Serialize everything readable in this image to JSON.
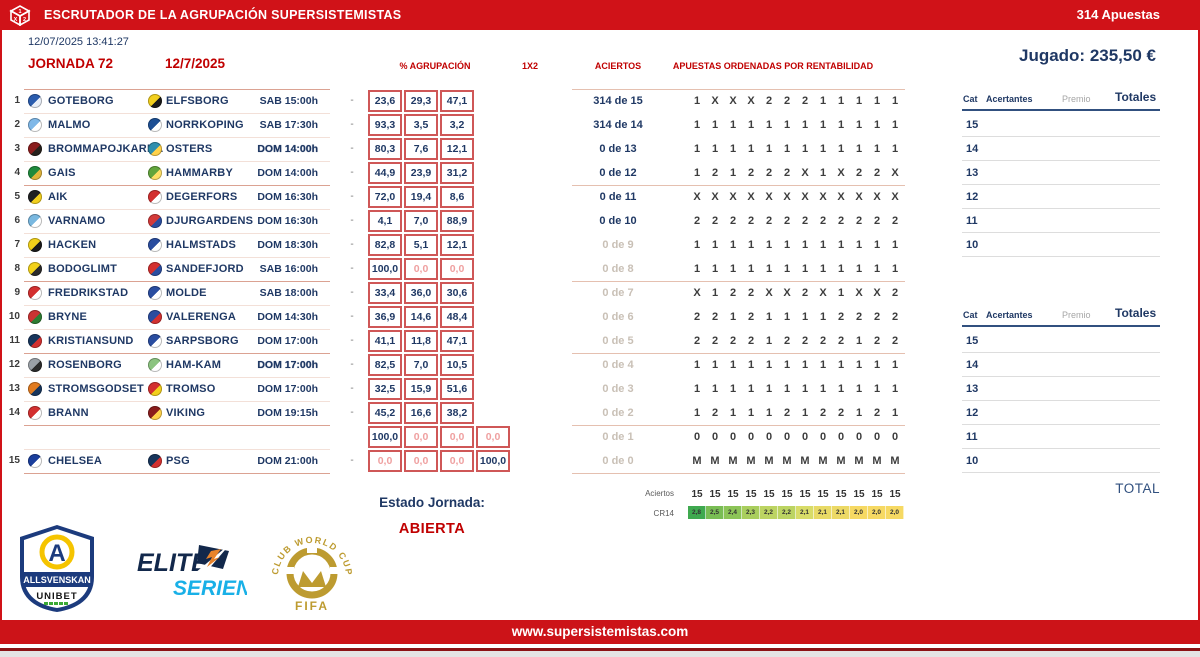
{
  "header": {
    "title": "ESCRUTADOR DE LA AGRUPACIÓN SUPERSISTEMISTAS",
    "bets_count": "314 Apuestas",
    "icon": "dice-1x2-icon"
  },
  "meta": {
    "timestamp": "12/07/2025 13:41:27",
    "jornada": "JORNADA 72",
    "date": "12/7/2025",
    "played": "Jugado: 235,50 €"
  },
  "columns": {
    "agrupacion": "% AGRUPACIÓN",
    "signs": "1X2",
    "aciertos": "ACIERTOS",
    "apuestas": "APUESTAS ORDENADAS POR RENTABILIDAD"
  },
  "matches": [
    {
      "num": "1",
      "home": "GOTEBORG",
      "away": "ELFSBORG",
      "time": "SAB 15:00h",
      "time_bold": false,
      "home_badge": [
        "#2a5cae",
        "#e8eef8"
      ],
      "away_badge": [
        "#f2cf1d",
        "#1a1a1a"
      ],
      "pct": [
        "23,6",
        "29,3",
        "47,1"
      ]
    },
    {
      "num": "2",
      "home": "MALMO",
      "away": "NORRKOPING",
      "time": "SAB 17:30h",
      "time_bold": false,
      "home_badge": [
        "#7fb8e8",
        "#ffffff"
      ],
      "away_badge": [
        "#1d4f94",
        "#ffffff"
      ],
      "pct": [
        "93,3",
        "3,5",
        "3,2"
      ]
    },
    {
      "num": "3",
      "home": "BROMMAPOJKARNA",
      "away": "OSTERS",
      "time": "DOM 14:00h",
      "time_bold": true,
      "home_badge": [
        "#8a1c1c",
        "#26211c"
      ],
      "away_badge": [
        "#2f8fae",
        "#ffd24a"
      ],
      "pct": [
        "80,3",
        "7,6",
        "12,1"
      ]
    },
    {
      "num": "4",
      "home": "GAIS",
      "away": "HAMMARBY",
      "time": "DOM 14:00h",
      "time_bold": false,
      "home_badge": [
        "#1f8a3c",
        "#e0b43a"
      ],
      "away_badge": [
        "#63a53c",
        "#ffe066"
      ],
      "pct": [
        "44,9",
        "23,9",
        "31,2"
      ]
    },
    {
      "num": "5",
      "home": "AIK",
      "away": "DEGERFORS",
      "time": "DOM 16:30h",
      "time_bold": false,
      "home_badge": [
        "#1f2022",
        "#f2cf1d"
      ],
      "away_badge": [
        "#d33030",
        "#ffffff"
      ],
      "pct": [
        "72,0",
        "19,4",
        "8,6"
      ]
    },
    {
      "num": "6",
      "home": "VARNAMO",
      "away": "DJURGARDENS",
      "time": "DOM 16:30h",
      "time_bold": false,
      "home_badge": [
        "#79b8e0",
        "#ffffff"
      ],
      "away_badge": [
        "#d33a3a",
        "#2a4da0"
      ],
      "pct": [
        "4,1",
        "7,0",
        "88,9"
      ]
    },
    {
      "num": "7",
      "home": "HACKEN",
      "away": "HALMSTADS",
      "time": "DOM 18:30h",
      "time_bold": false,
      "home_badge": [
        "#f2d11a",
        "#1a1a1a"
      ],
      "away_badge": [
        "#2a4da0",
        "#ffffff"
      ],
      "pct": [
        "82,8",
        "5,1",
        "12,1"
      ]
    },
    {
      "num": "8",
      "home": "BODOGLIMT",
      "away": "SANDEFJORD",
      "time": "SAB 16:00h",
      "time_bold": false,
      "home_badge": [
        "#f2d11a",
        "#2b2b2b"
      ],
      "away_badge": [
        "#d33030",
        "#2a4da0"
      ],
      "pct": [
        "100,0",
        "0,0",
        "0,0"
      ]
    },
    {
      "num": "9",
      "home": "FREDRIKSTAD",
      "away": "MOLDE",
      "time": "SAB 18:00h",
      "time_bold": false,
      "home_badge": [
        "#d33030",
        "#ffffff"
      ],
      "away_badge": [
        "#2a4da0",
        "#ffffff"
      ],
      "pct": [
        "33,4",
        "36,0",
        "30,6"
      ]
    },
    {
      "num": "10",
      "home": "BRYNE",
      "away": "VALERENGA",
      "time": "DOM 14:30h",
      "time_bold": false,
      "home_badge": [
        "#cc3333",
        "#2e7d32"
      ],
      "away_badge": [
        "#2a4da0",
        "#d33030"
      ],
      "pct": [
        "36,9",
        "14,6",
        "48,4"
      ]
    },
    {
      "num": "11",
      "home": "KRISTIANSUND",
      "away": "SARPSBORG",
      "time": "DOM 17:00h",
      "time_bold": false,
      "home_badge": [
        "#17355c",
        "#d33030"
      ],
      "away_badge": [
        "#2a4da0",
        "#ffffff"
      ],
      "pct": [
        "41,1",
        "11,8",
        "47,1"
      ]
    },
    {
      "num": "12",
      "home": "ROSENBORG",
      "away": "HAM-KAM",
      "time": "DOM 17:00h",
      "time_bold": true,
      "home_badge": [
        "#9aa0a6",
        "#2b2b2b"
      ],
      "away_badge": [
        "#8cc480",
        "#ffffff"
      ],
      "pct": [
        "82,5",
        "7,0",
        "10,5"
      ]
    },
    {
      "num": "13",
      "home": "STROMSGODSET",
      "away": "TROMSO",
      "time": "DOM 17:00h",
      "time_bold": false,
      "home_badge": [
        "#e07b20",
        "#17355c"
      ],
      "away_badge": [
        "#d33030",
        "#f2cf1d"
      ],
      "pct": [
        "32,5",
        "15,9",
        "51,6"
      ]
    },
    {
      "num": "14",
      "home": "BRANN",
      "away": "VIKING",
      "time": "DOM 19:15h",
      "time_bold": false,
      "home_badge": [
        "#d33030",
        "#ffffff"
      ],
      "away_badge": [
        "#8a1c1c",
        "#ffd24a"
      ],
      "pct": [
        "45,2",
        "16,6",
        "38,2"
      ]
    },
    {
      "num": "15",
      "home": "CHELSEA",
      "away": "PSG",
      "time": "DOM 21:00h",
      "time_bold": false,
      "home_badge": [
        "#1a3e9c",
        "#ffffff"
      ],
      "away_badge": [
        "#17355c",
        "#d33030"
      ],
      "pct": null
    }
  ],
  "match15_pct_rows": [
    [
      "100,0",
      "0,0",
      "0,0",
      "0,0"
    ],
    [
      "0,0",
      "0,0",
      "0,0",
      "100,0"
    ]
  ],
  "aciertos_rows": [
    "314 de 15",
    "314 de 14",
    "0 de 13",
    "0 de 12",
    "0 de 11",
    "0 de 10",
    "0 de 9",
    "0 de 8",
    "0 de 7",
    "0 de 6",
    "0 de 5",
    "0 de 4",
    "0 de 3",
    "0 de 2",
    "0 de 1",
    "0 de 0"
  ],
  "aciertos_muted_from": 6,
  "bets_grid": [
    [
      "1",
      "X",
      "X",
      "X",
      "2",
      "2",
      "2",
      "1",
      "1",
      "1",
      "1",
      "1"
    ],
    [
      "1",
      "1",
      "1",
      "1",
      "1",
      "1",
      "1",
      "1",
      "1",
      "1",
      "1",
      "1"
    ],
    [
      "1",
      "1",
      "1",
      "1",
      "1",
      "1",
      "1",
      "1",
      "1",
      "1",
      "1",
      "1"
    ],
    [
      "1",
      "2",
      "1",
      "2",
      "2",
      "2",
      "X",
      "1",
      "X",
      "2",
      "2",
      "X"
    ],
    [
      "X",
      "X",
      "X",
      "X",
      "X",
      "X",
      "X",
      "X",
      "X",
      "X",
      "X",
      "X"
    ],
    [
      "2",
      "2",
      "2",
      "2",
      "2",
      "2",
      "2",
      "2",
      "2",
      "2",
      "2",
      "2"
    ],
    [
      "1",
      "1",
      "1",
      "1",
      "1",
      "1",
      "1",
      "1",
      "1",
      "1",
      "1",
      "1"
    ],
    [
      "1",
      "1",
      "1",
      "1",
      "1",
      "1",
      "1",
      "1",
      "1",
      "1",
      "1",
      "1"
    ],
    [
      "X",
      "1",
      "2",
      "2",
      "X",
      "X",
      "2",
      "X",
      "1",
      "X",
      "X",
      "2"
    ],
    [
      "2",
      "2",
      "1",
      "2",
      "1",
      "1",
      "1",
      "1",
      "2",
      "2",
      "2",
      "2"
    ],
    [
      "2",
      "2",
      "2",
      "2",
      "1",
      "2",
      "2",
      "2",
      "2",
      "1",
      "2",
      "2"
    ],
    [
      "1",
      "1",
      "1",
      "1",
      "1",
      "1",
      "1",
      "1",
      "1",
      "1",
      "1",
      "1"
    ],
    [
      "1",
      "1",
      "1",
      "1",
      "1",
      "1",
      "1",
      "1",
      "1",
      "1",
      "1",
      "1"
    ],
    [
      "1",
      "2",
      "1",
      "1",
      "1",
      "2",
      "1",
      "2",
      "2",
      "1",
      "2",
      "1"
    ],
    [
      "0",
      "0",
      "0",
      "0",
      "0",
      "0",
      "0",
      "0",
      "0",
      "0",
      "0",
      "0"
    ],
    [
      "M",
      "M",
      "M",
      "M",
      "M",
      "M",
      "M",
      "M",
      "M",
      "M",
      "M",
      "M"
    ]
  ],
  "right_table": {
    "headers": {
      "cat": "Cat",
      "acertantes": "Acertantes",
      "premio": "Premio",
      "totales": "Totales"
    },
    "cats": [
      "15",
      "14",
      "13",
      "12",
      "11",
      "10"
    ],
    "total_label": "TOTAL"
  },
  "estado": {
    "label": "Estado Jornada:",
    "value": "ABIERTA"
  },
  "summary": {
    "aciertos_label": "Aciertos",
    "cr_label": "CR14",
    "aciertos_values": [
      "15",
      "15",
      "15",
      "15",
      "15",
      "15",
      "15",
      "15",
      "15",
      "15",
      "15",
      "15"
    ],
    "cr_values": [
      "2,8",
      "2,5",
      "2,4",
      "2,3",
      "2,2",
      "2,2",
      "2,1",
      "2,1",
      "2,1",
      "2,0",
      "2,0",
      "2,0"
    ],
    "cr_colors": [
      "#3fa94f",
      "#79bd54",
      "#8cc457",
      "#a9ce5d",
      "#bcd462",
      "#bcd462",
      "#d8dc68",
      "#e8da66",
      "#ecd965",
      "#f6d963",
      "#f6d963",
      "#f6d963"
    ]
  },
  "logos": {
    "allsvenskan": {
      "line1": "ALLSVENSKAN",
      "line2": "UNIBET",
      "letter": "A"
    },
    "eliteserien": {
      "line1": "ELITE",
      "line2": "SERIEN"
    },
    "cwc": {
      "arc": "CLUB WORLD CUP 25",
      "fifa": "FIFA"
    }
  },
  "footer": {
    "url": "www.supersistemistas.com"
  },
  "colors": {
    "bar_red": "#d01218",
    "text_red": "#c00000",
    "navy": "#1f3864",
    "zero_pink": "#efa0a0",
    "muted_gray": "#c9c0b6",
    "box_border": "#cf5757"
  }
}
